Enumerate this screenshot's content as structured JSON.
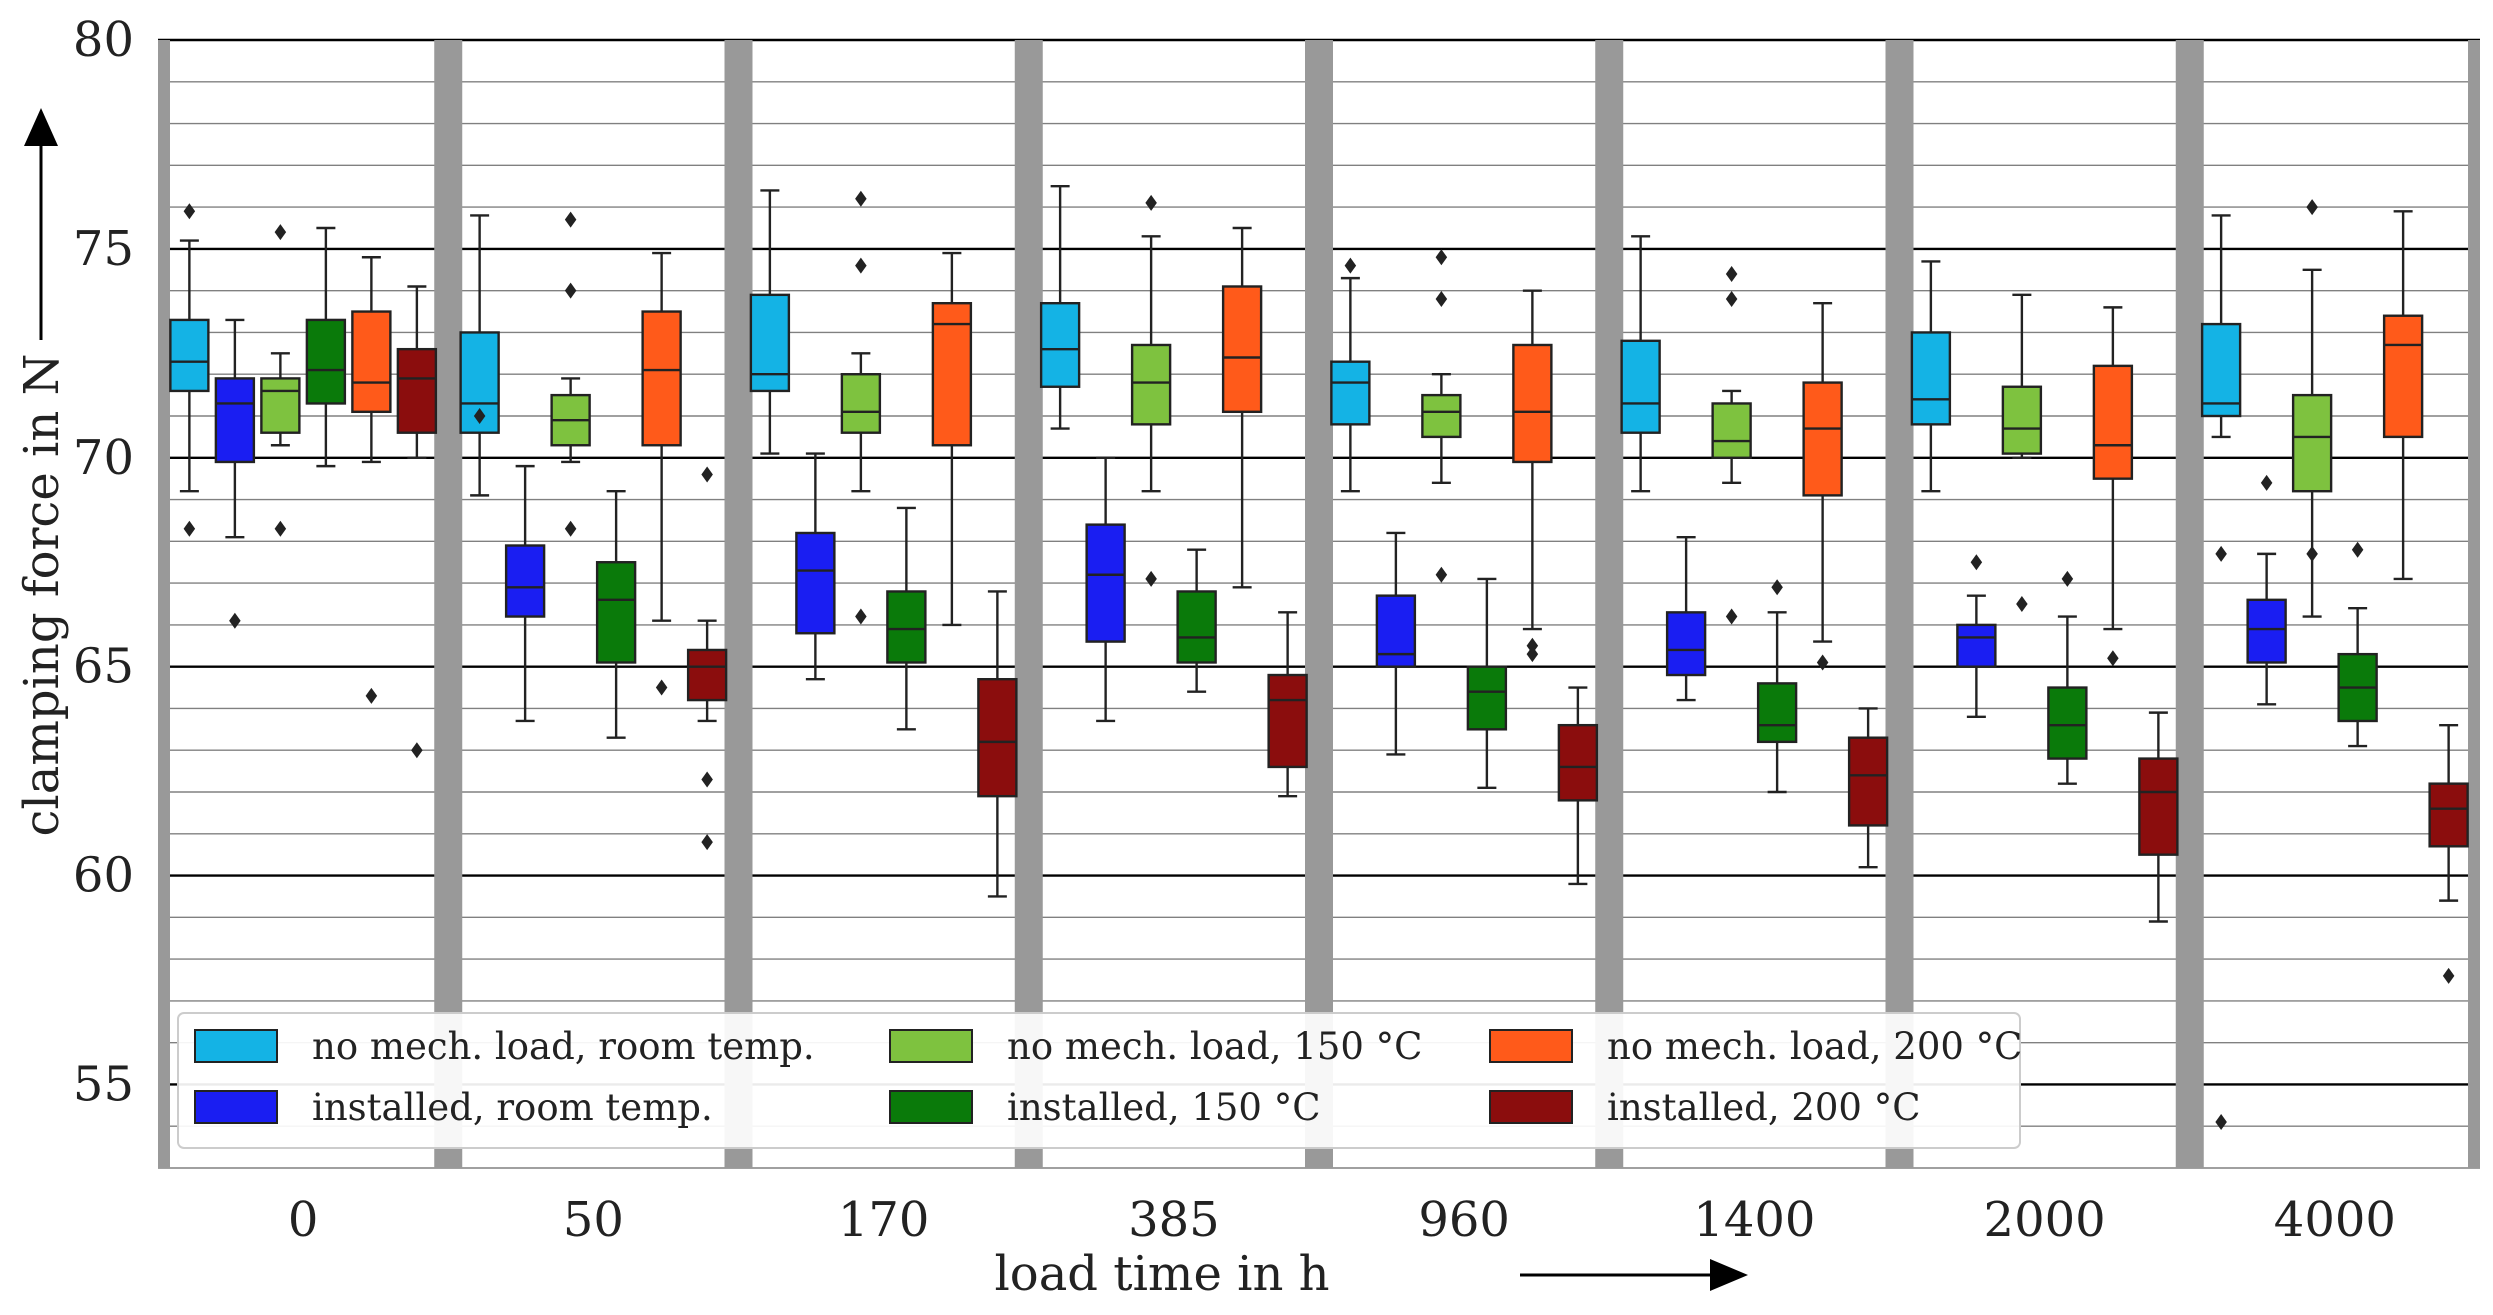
{
  "chart_data": {
    "type": "boxplot",
    "title": "",
    "xlabel": "load time in h",
    "ylabel": "clamping force in N",
    "ylim": [
      53,
      80
    ],
    "yticks": [
      55,
      60,
      65,
      70,
      75,
      80
    ],
    "grid": "horizontal major and minor lines",
    "legend_position": "bottom-left",
    "categories": [
      "0",
      "50",
      "170",
      "385",
      "960",
      "1400",
      "2000",
      "4000"
    ],
    "series": [
      {
        "name": "no mech. load, room temp.",
        "color": "#14b3e5",
        "boxes": [
          {
            "whisker_low": 69.2,
            "q1": 71.6,
            "median": 72.3,
            "q3": 73.3,
            "whisker_high": 75.2,
            "outliers": [
              68.3,
              75.9
            ]
          },
          {
            "whisker_low": 69.1,
            "q1": 70.6,
            "median": 71.3,
            "q3": 73.0,
            "whisker_high": 75.8,
            "outliers": [
              71.0
            ]
          },
          {
            "whisker_low": 70.1,
            "q1": 71.6,
            "median": 72.0,
            "q3": 73.9,
            "whisker_high": 76.4,
            "outliers": []
          },
          {
            "whisker_low": 70.7,
            "q1": 71.7,
            "median": 72.6,
            "q3": 73.7,
            "whisker_high": 76.5,
            "outliers": []
          },
          {
            "whisker_low": 69.2,
            "q1": 70.8,
            "median": 71.8,
            "q3": 72.3,
            "whisker_high": 74.3,
            "outliers": [
              74.6
            ]
          },
          {
            "whisker_low": 69.2,
            "q1": 70.6,
            "median": 71.3,
            "q3": 72.8,
            "whisker_high": 75.3,
            "outliers": []
          },
          {
            "whisker_low": 69.2,
            "q1": 70.8,
            "median": 71.4,
            "q3": 73.0,
            "whisker_high": 74.7,
            "outliers": []
          },
          {
            "whisker_low": 70.5,
            "q1": 71.0,
            "median": 71.3,
            "q3": 73.2,
            "whisker_high": 75.8,
            "outliers": [
              67.7,
              54.1
            ]
          }
        ]
      },
      {
        "name": "installed, room temp.",
        "color": "#1a1ef2",
        "boxes": [
          {
            "whisker_low": 68.1,
            "q1": 69.9,
            "median": 71.3,
            "q3": 71.9,
            "whisker_high": 73.3,
            "outliers": [
              66.1
            ]
          },
          {
            "whisker_low": 63.7,
            "q1": 66.2,
            "median": 66.9,
            "q3": 67.9,
            "whisker_high": 69.8,
            "outliers": []
          },
          {
            "whisker_low": 64.7,
            "q1": 65.8,
            "median": 67.3,
            "q3": 68.2,
            "whisker_high": 70.1,
            "outliers": []
          },
          {
            "whisker_low": 63.7,
            "q1": 65.6,
            "median": 67.2,
            "q3": 68.4,
            "whisker_high": 70.0,
            "outliers": []
          },
          {
            "whisker_low": 62.9,
            "q1": 65.0,
            "median": 65.3,
            "q3": 66.7,
            "whisker_high": 68.2,
            "outliers": []
          },
          {
            "whisker_low": 64.2,
            "q1": 64.8,
            "median": 65.4,
            "q3": 66.3,
            "whisker_high": 68.1,
            "outliers": []
          },
          {
            "whisker_low": 63.8,
            "q1": 65.0,
            "median": 65.7,
            "q3": 66.0,
            "whisker_high": 66.7,
            "outliers": [
              67.5
            ]
          },
          {
            "whisker_low": 64.1,
            "q1": 65.1,
            "median": 65.9,
            "q3": 66.6,
            "whisker_high": 67.7,
            "outliers": [
              69.4
            ]
          }
        ]
      },
      {
        "name": "no mech. load, 150 °C",
        "color": "#7ec23f",
        "boxes": [
          {
            "whisker_low": 70.3,
            "q1": 70.6,
            "median": 71.6,
            "q3": 71.9,
            "whisker_high": 72.5,
            "outliers": [
              68.3,
              75.4
            ]
          },
          {
            "whisker_low": 69.9,
            "q1": 70.3,
            "median": 70.9,
            "q3": 71.5,
            "whisker_high": 71.9,
            "outliers": [
              68.3,
              74.0,
              75.7
            ]
          },
          {
            "whisker_low": 69.2,
            "q1": 70.6,
            "median": 71.1,
            "q3": 72.0,
            "whisker_high": 72.5,
            "outliers": [
              66.2,
              74.6,
              76.2
            ]
          },
          {
            "whisker_low": 69.2,
            "q1": 70.8,
            "median": 71.8,
            "q3": 72.7,
            "whisker_high": 75.3,
            "outliers": [
              67.1,
              76.1
            ]
          },
          {
            "whisker_low": 69.4,
            "q1": 70.5,
            "median": 71.1,
            "q3": 71.5,
            "whisker_high": 72.0,
            "outliers": [
              67.2,
              73.8,
              74.8
            ]
          },
          {
            "whisker_low": 69.4,
            "q1": 70.0,
            "median": 70.4,
            "q3": 71.3,
            "whisker_high": 71.6,
            "outliers": [
              66.2,
              73.8,
              74.4
            ]
          },
          {
            "whisker_low": 70.0,
            "q1": 70.1,
            "median": 70.7,
            "q3": 71.7,
            "whisker_high": 73.9,
            "outliers": [
              66.5
            ]
          },
          {
            "whisker_low": 66.2,
            "q1": 69.2,
            "median": 70.5,
            "q3": 71.5,
            "whisker_high": 74.5,
            "outliers": [
              67.7,
              76.0
            ]
          }
        ]
      },
      {
        "name": "installed, 150 °C",
        "color": "#0a7a0a",
        "boxes": [
          {
            "whisker_low": 69.8,
            "q1": 71.3,
            "median": 72.1,
            "q3": 73.3,
            "whisker_high": 75.5,
            "outliers": []
          },
          {
            "whisker_low": 63.3,
            "q1": 65.1,
            "median": 66.6,
            "q3": 67.5,
            "whisker_high": 69.2,
            "outliers": []
          },
          {
            "whisker_low": 63.5,
            "q1": 65.1,
            "median": 65.9,
            "q3": 66.8,
            "whisker_high": 68.8,
            "outliers": []
          },
          {
            "whisker_low": 64.4,
            "q1": 65.1,
            "median": 65.7,
            "q3": 66.8,
            "whisker_high": 67.8,
            "outliers": []
          },
          {
            "whisker_low": 62.1,
            "q1": 63.5,
            "median": 64.4,
            "q3": 65.0,
            "whisker_high": 67.1,
            "outliers": []
          },
          {
            "whisker_low": 62.0,
            "q1": 63.2,
            "median": 63.6,
            "q3": 64.6,
            "whisker_high": 66.3,
            "outliers": [
              66.9
            ]
          },
          {
            "whisker_low": 62.2,
            "q1": 62.8,
            "median": 63.6,
            "q3": 64.5,
            "whisker_high": 66.2,
            "outliers": [
              67.1
            ]
          },
          {
            "whisker_low": 63.1,
            "q1": 63.7,
            "median": 64.5,
            "q3": 65.3,
            "whisker_high": 66.4,
            "outliers": [
              67.8
            ]
          }
        ]
      },
      {
        "name": "no mech. load, 200 °C",
        "color": "#ff5a1a",
        "boxes": [
          {
            "whisker_low": 69.9,
            "q1": 71.1,
            "median": 71.8,
            "q3": 73.5,
            "whisker_high": 74.8,
            "outliers": [
              64.3
            ]
          },
          {
            "whisker_low": 66.1,
            "q1": 70.3,
            "median": 72.1,
            "q3": 73.5,
            "whisker_high": 74.9,
            "outliers": [
              64.5
            ]
          },
          {
            "whisker_low": 66.0,
            "q1": 70.3,
            "median": 73.2,
            "q3": 73.7,
            "whisker_high": 74.9,
            "outliers": []
          },
          {
            "whisker_low": 66.9,
            "q1": 71.1,
            "median": 72.4,
            "q3": 74.1,
            "whisker_high": 75.5,
            "outliers": []
          },
          {
            "whisker_low": 65.9,
            "q1": 69.9,
            "median": 71.1,
            "q3": 72.7,
            "whisker_high": 74.0,
            "outliers": [
              65.3,
              65.5
            ]
          },
          {
            "whisker_low": 65.6,
            "q1": 69.1,
            "median": 70.7,
            "q3": 71.8,
            "whisker_high": 73.7,
            "outliers": [
              65.1
            ]
          },
          {
            "whisker_low": 65.9,
            "q1": 69.5,
            "median": 70.3,
            "q3": 72.2,
            "whisker_high": 73.6,
            "outliers": [
              65.2
            ]
          },
          {
            "whisker_low": 67.1,
            "q1": 70.5,
            "median": 72.7,
            "q3": 73.4,
            "whisker_high": 75.9,
            "outliers": []
          }
        ]
      },
      {
        "name": "installed, 200 °C",
        "color": "#8b0d0d",
        "boxes": [
          {
            "whisker_low": 70.0,
            "q1": 70.6,
            "median": 71.9,
            "q3": 72.6,
            "whisker_high": 74.1,
            "outliers": [
              63.0
            ]
          },
          {
            "whisker_low": 63.7,
            "q1": 64.2,
            "median": 65.0,
            "q3": 65.4,
            "whisker_high": 66.1,
            "outliers": [
              60.8,
              62.3,
              69.6
            ]
          },
          {
            "whisker_low": 59.5,
            "q1": 61.9,
            "median": 63.2,
            "q3": 64.7,
            "whisker_high": 66.8,
            "outliers": []
          },
          {
            "whisker_low": 61.9,
            "q1": 62.6,
            "median": 64.2,
            "q3": 64.8,
            "whisker_high": 66.3,
            "outliers": []
          },
          {
            "whisker_low": 59.8,
            "q1": 61.8,
            "median": 62.6,
            "q3": 63.6,
            "whisker_high": 64.5,
            "outliers": []
          },
          {
            "whisker_low": 60.2,
            "q1": 61.2,
            "median": 62.4,
            "q3": 63.3,
            "whisker_high": 64.0,
            "outliers": []
          },
          {
            "whisker_low": 58.9,
            "q1": 60.5,
            "median": 62.0,
            "q3": 62.8,
            "whisker_high": 63.9,
            "outliers": []
          },
          {
            "whisker_low": 59.4,
            "q1": 60.7,
            "median": 61.6,
            "q3": 62.2,
            "whisker_high": 63.6,
            "outliers": [
              57.6
            ]
          }
        ]
      }
    ],
    "legend": [
      "no mech. load, room temp.",
      "no mech. load, 150 °C",
      "no mech. load, 200 °C",
      "installed, room temp.",
      "installed, 150 °C",
      "installed, 200 °C"
    ]
  },
  "colors": {
    "separator": "#999999",
    "grid_major": "#000000",
    "grid_minor": "#808080"
  }
}
